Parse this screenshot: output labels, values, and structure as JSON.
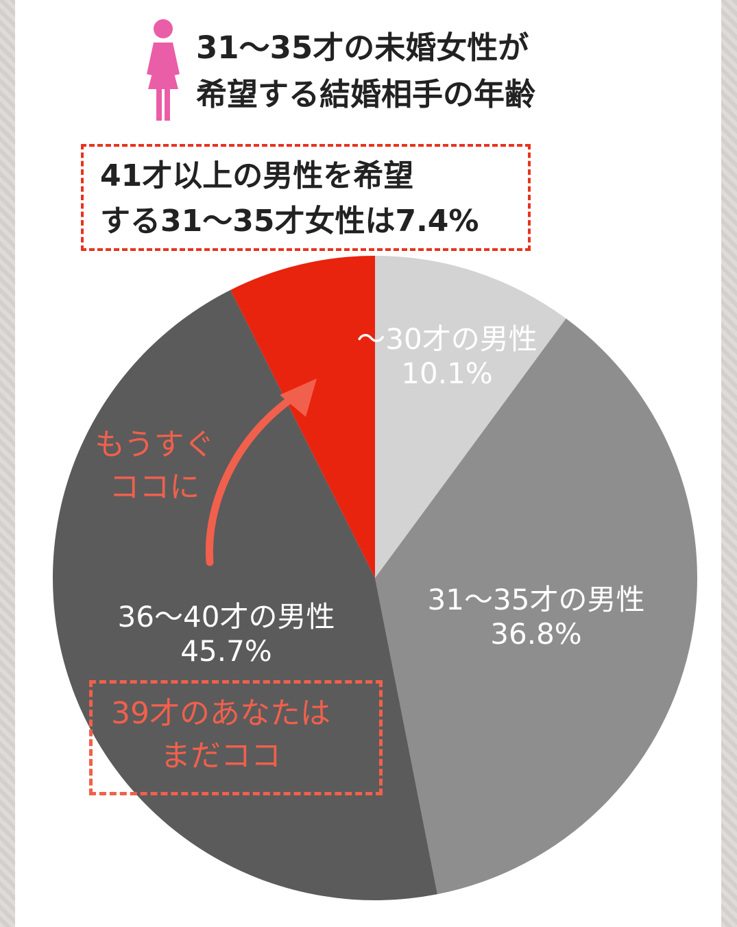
{
  "header": {
    "title_line1": "31～35才の未婚女性が",
    "title_line2": "希望する結婚相手の年齢",
    "icon": "woman-icon",
    "icon_color": "#ea5ea8"
  },
  "callout": {
    "line1": "41才以上の男性を希望",
    "line2": "する31～35才女性は7.4%",
    "border_color": "#e8321e"
  },
  "chart_data": {
    "type": "pie",
    "title": "31～35才の未婚女性が希望する結婚相手の年齢",
    "slices": [
      {
        "label": "～30才の男性",
        "value": 10.1,
        "value_text": "10.1%",
        "color": "#d3d3d3"
      },
      {
        "label": "31～35才の男性",
        "value": 36.8,
        "value_text": "36.8%",
        "color": "#8e8e8e"
      },
      {
        "label": "36～40才の男性",
        "value": 45.7,
        "value_text": "45.7%",
        "color": "#5b5b5b"
      },
      {
        "label": "",
        "value": 7.4,
        "value_text": "",
        "color": "#e8230e"
      }
    ],
    "start": "12 o'clock",
    "direction": "clockwise"
  },
  "annotations": {
    "soon_line1": "もうすぐ",
    "soon_line2": "ココに",
    "you_line1": "39才のあなたは",
    "you_line2": "まだココ",
    "accent_color": "#f1604c"
  }
}
